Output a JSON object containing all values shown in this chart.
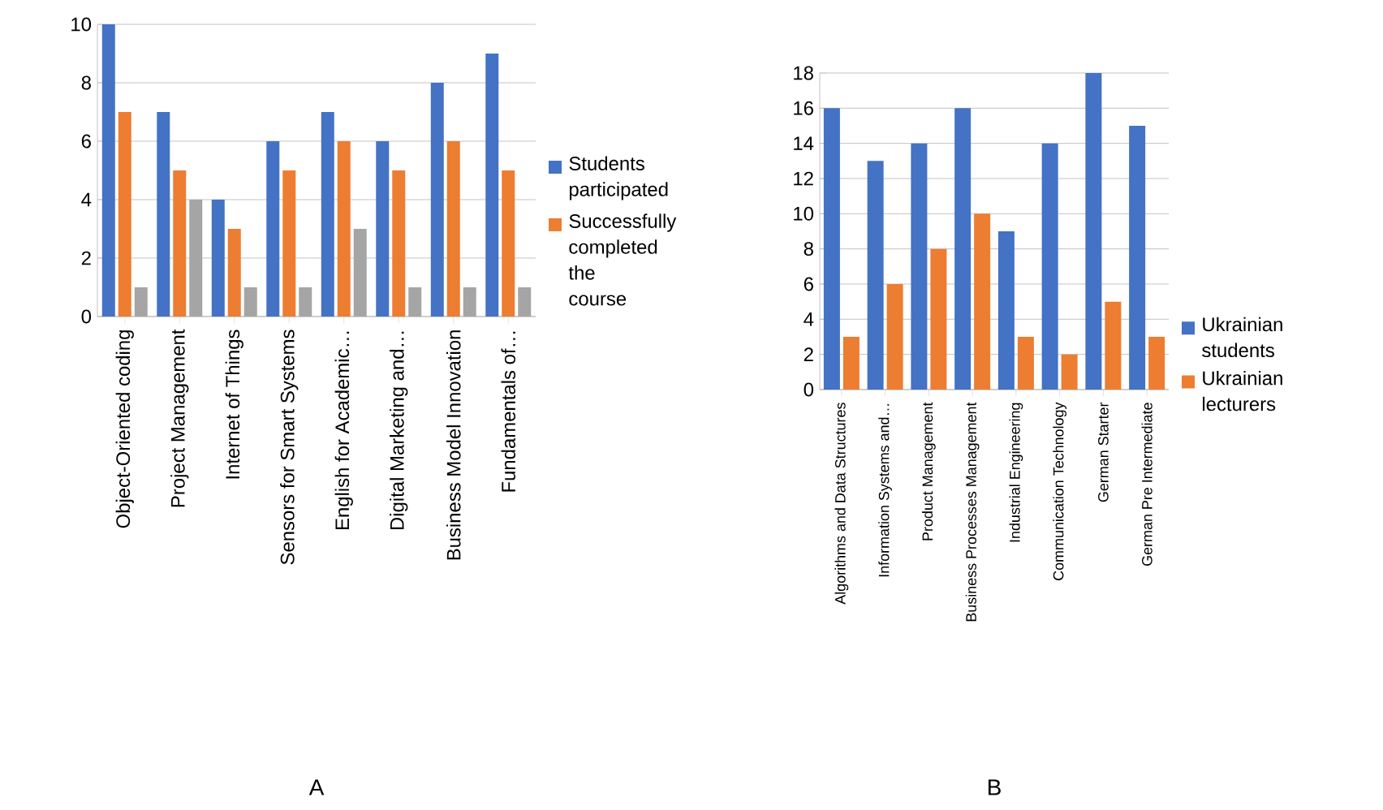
{
  "chart_data": [
    {
      "type": "bar",
      "categories": [
        "Object-Oriented coding",
        "Project Management",
        "Internet of Things",
        "Sensors for Smart Systems",
        "English for Academic…",
        "Digital Marketing and…",
        "Business Model Innovation",
        "Fundamentals of…"
      ],
      "series": [
        {
          "name": "Students participated",
          "color": "#4472c4",
          "values": [
            10,
            7,
            4,
            6,
            7,
            6,
            8,
            9
          ]
        },
        {
          "name": "Successfully completed the course",
          "color": "#ed7d31",
          "values": [
            7,
            5,
            3,
            5,
            6,
            5,
            6,
            5
          ]
        },
        {
          "color": "#a5a5a5",
          "values": [
            1,
            4,
            1,
            1,
            3,
            1,
            1,
            1
          ]
        }
      ],
      "ylim": [
        0,
        10
      ],
      "yticks": [
        0,
        2,
        4,
        6,
        8,
        10
      ],
      "grid": "y",
      "legend": "right",
      "annotations": [
        "A"
      ]
    },
    {
      "type": "bar",
      "categories": [
        "Algorithms and Data Structures",
        "Information Systems and…",
        "Product Management",
        "Business Processes Management",
        "Industrial Engineering",
        "Communication Technology",
        "German Starter",
        "German Pre Intermediate"
      ],
      "series": [
        {
          "name": "Ukrainian students",
          "color": "#4472c4",
          "values": [
            16,
            13,
            14,
            16,
            9,
            14,
            18,
            15
          ]
        },
        {
          "name": "Ukrainian lecturers",
          "color": "#ed7d31",
          "values": [
            3,
            6,
            8,
            10,
            3,
            2,
            5,
            3
          ]
        }
      ],
      "ylim": [
        0,
        18
      ],
      "yticks": [
        0,
        2,
        4,
        6,
        8,
        10,
        12,
        14,
        16,
        18
      ],
      "grid": "y",
      "legend": "right",
      "annotations": [
        "B"
      ]
    }
  ]
}
